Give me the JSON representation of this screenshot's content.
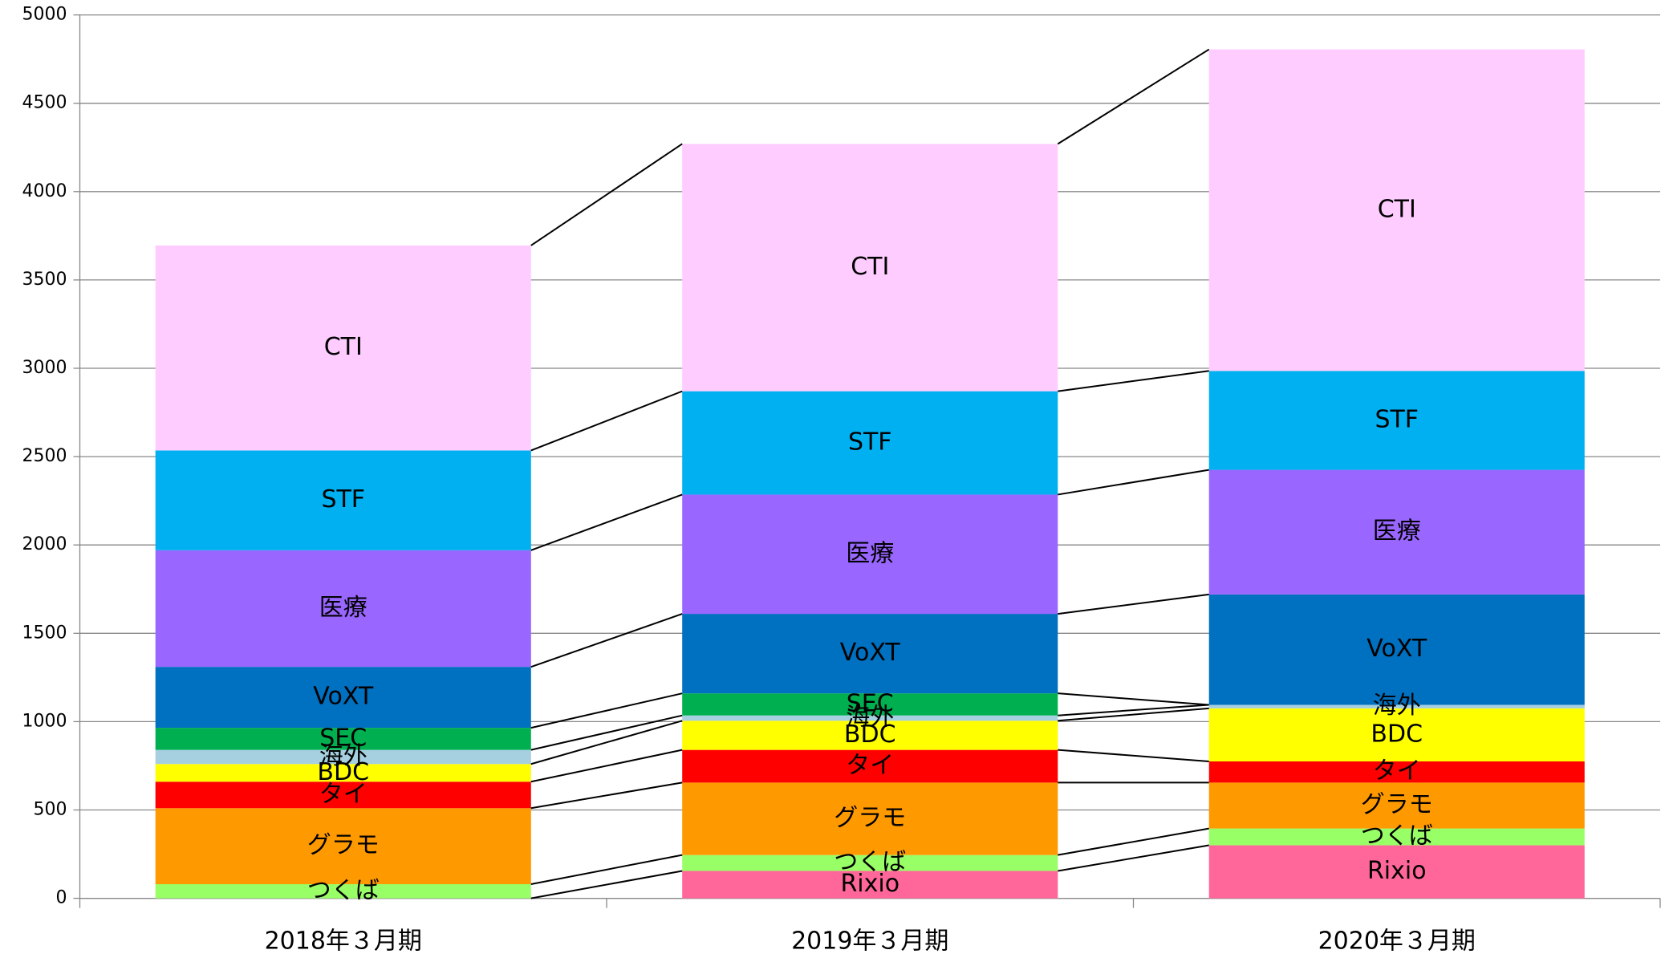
{
  "chart_data": {
    "type": "stacked_bar",
    "categories": [
      "2018年３月期",
      "2019年３月期",
      "2020年３月期"
    ],
    "series": [
      {
        "name": "Rixio",
        "color": "#ff6699",
        "values": [
          0,
          155,
          300
        ]
      },
      {
        "name": "つくば",
        "color": "#99ff66",
        "values": [
          80,
          90,
          95
        ]
      },
      {
        "name": "グラモ",
        "color": "#ff9900",
        "values": [
          430,
          410,
          260
        ]
      },
      {
        "name": "タイ",
        "color": "#ff0000",
        "values": [
          150,
          185,
          120
        ]
      },
      {
        "name": "BDC",
        "color": "#ffff00",
        "values": [
          100,
          165,
          300
        ]
      },
      {
        "name": "海外",
        "color": "#a6cfe0",
        "values": [
          80,
          30,
          20
        ]
      },
      {
        "name": "SEC",
        "color": "#00b050",
        "values": [
          125,
          125,
          0
        ]
      },
      {
        "name": "VoXT",
        "color": "#0070c0",
        "values": [
          345,
          450,
          625
        ]
      },
      {
        "name": "医療",
        "color": "#9966ff",
        "values": [
          660,
          675,
          705
        ]
      },
      {
        "name": "STF",
        "color": "#00b0f0",
        "values": [
          565,
          585,
          560
        ]
      },
      {
        "name": "CTI",
        "color": "#ffccff",
        "values": [
          1160,
          1400,
          1820
        ]
      }
    ],
    "ylim": [
      0,
      5000
    ],
    "yticks": [
      0,
      500,
      1000,
      1500,
      2000,
      2500,
      3000,
      3500,
      4000,
      4500,
      5000
    ],
    "grid": true,
    "series_lines": true
  }
}
